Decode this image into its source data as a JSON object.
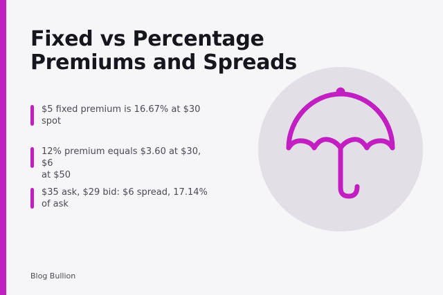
{
  "header": {
    "title_lines": [
      "Fixed vs Percentage",
      "Premiums and Spreads"
    ]
  },
  "bullets": [
    {
      "lines": [
        "$5 fixed premium is 16.67% at $30",
        "spot"
      ]
    },
    {
      "lines": [
        "12% premium equals $3.60 at $30, $6",
        "at $50"
      ]
    },
    {
      "lines": [
        "$35 ask, $29 bid: $6 spread, 17.14%",
        "of ask"
      ]
    }
  ],
  "footer": {
    "brand": "Blog Bullion"
  }
}
